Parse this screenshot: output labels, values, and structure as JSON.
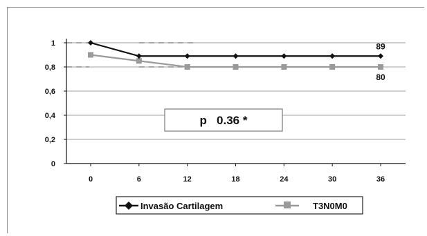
{
  "chart_data": {
    "type": "line",
    "x": [
      0,
      6,
      12,
      18,
      24,
      30,
      36
    ],
    "xticks": [
      "0",
      "6",
      "12",
      "18",
      "24",
      "30",
      "36"
    ],
    "yticks": [
      "0",
      "0,2",
      "0,4",
      "0,6",
      "0,8",
      "1"
    ],
    "ylim": [
      0,
      1
    ],
    "xlim": [
      0,
      36
    ],
    "grid": true,
    "legend_position": "bottom",
    "series": [
      {
        "name": "Invasão Cartilagem",
        "values": [
          1.0,
          0.89,
          0.89,
          0.89,
          0.89,
          0.89,
          0.89
        ],
        "color": "#111111",
        "marker": "diamond",
        "end_label": "89"
      },
      {
        "name": "T3N0M0",
        "values": [
          0.9,
          0.85,
          0.8,
          0.8,
          0.8,
          0.8,
          0.8
        ],
        "color": "#9a9a9a",
        "marker": "square",
        "end_label": "80"
      }
    ],
    "reference_lines": [
      1.0,
      0.8
    ],
    "annotation": "p   0.36 *"
  },
  "colors": {
    "grid": "#a0a0a0",
    "axis": "#111111",
    "reference": "#8c8c8c"
  }
}
